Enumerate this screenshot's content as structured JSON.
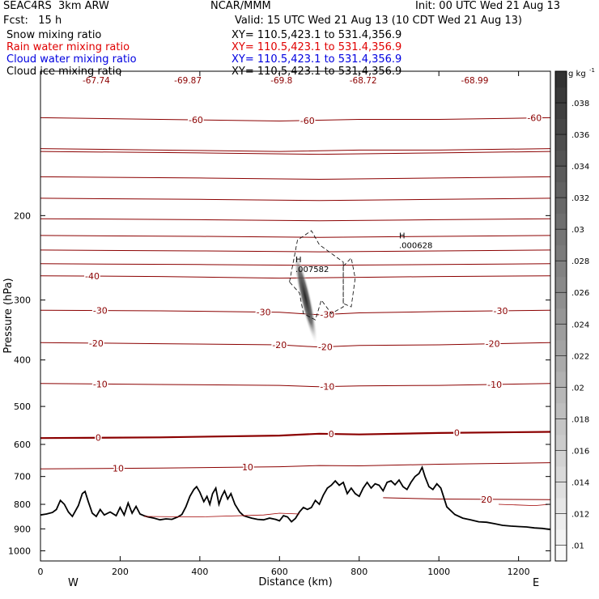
{
  "header": {
    "model": "SEAC4RS  3km ARW",
    "center": "NCAR/MMM",
    "init": "Init: 00 UTC Wed 21 Aug 13",
    "fcst": "Fcst:   15 h",
    "valid": "Valid: 15 UTC Wed 21 Aug 13 (10 CDT Wed 21 Aug 13)"
  },
  "fields": [
    {
      "name": "Snow mixing ratio",
      "xy": "XY= 110.5,423.1 to 531.4,356.9",
      "color": "#000000"
    },
    {
      "name": "Rain water mixing ratio",
      "xy": "XY= 110.5,423.1 to 531.4,356.9",
      "color": "#e00000"
    },
    {
      "name": "Cloud water mixing ratio",
      "xy": "XY= 110.5,423.1 to 531.4,356.9",
      "color": "#0000e0"
    },
    {
      "name": "Cloud ice mixing ratio",
      "xy": "XY= 110.5,423.1 to 531.4,356.9",
      "color": "#000000"
    }
  ],
  "chart_data": {
    "type": "contour",
    "xlabel": "Distance (km)",
    "ylabel": "Pressure (hPa)",
    "xlim": [
      0,
      1280
    ],
    "ylim": [
      1050,
      100
    ],
    "x_ticks": [
      "0",
      "200",
      "400",
      "600",
      "800",
      "1000",
      "1200"
    ],
    "y_ticks": [
      "200",
      "300",
      "400",
      "500",
      "600",
      "700",
      "800",
      "900",
      "1000"
    ],
    "x_tick_values": [
      0,
      200,
      400,
      600,
      800,
      1000,
      1200
    ],
    "y_tick_values": [
      200,
      300,
      400,
      500,
      600,
      700,
      800,
      900,
      1000
    ],
    "west_label": "W",
    "east_label": "E",
    "colorbar": {
      "unit": "g kg",
      "unit_sup": "-1",
      "ticks": [
        ".01",
        ".012",
        ".014",
        ".016",
        ".018",
        ".02",
        ".022",
        ".024",
        ".026",
        ".028",
        ".03",
        ".032",
        ".034",
        ".036",
        ".038"
      ],
      "tick_values": [
        0.01,
        0.012,
        0.014,
        0.016,
        0.018,
        0.02,
        0.022,
        0.024,
        0.026,
        0.028,
        0.03,
        0.032,
        0.034,
        0.036,
        0.038
      ],
      "range": [
        0.009,
        0.04
      ]
    },
    "temperature_contours_C": [
      {
        "level": -60,
        "points": [
          [
            0,
            125
          ],
          [
            300,
            126
          ],
          [
            600,
            127
          ],
          [
            800,
            126
          ],
          [
            1000,
            126
          ],
          [
            1280,
            125
          ]
        ],
        "labels": [
          [
            390,
            -60
          ],
          [
            670,
            -60
          ],
          [
            1240,
            -60
          ]
        ]
      },
      {
        "level": -50,
        "points": [
          [
            0,
            145
          ],
          [
            300,
            146
          ],
          [
            600,
            147
          ],
          [
            800,
            146
          ],
          [
            1000,
            146
          ],
          [
            1280,
            145
          ]
        ],
        "labels": []
      },
      {
        "level": -40,
        "points": [
          [
            0,
            267
          ],
          [
            300,
            268
          ],
          [
            600,
            270
          ],
          [
            800,
            269
          ],
          [
            1000,
            268
          ],
          [
            1280,
            267
          ]
        ],
        "labels": [
          [
            130,
            -40
          ]
        ]
      },
      {
        "level": -30,
        "points": [
          [
            0,
            315
          ],
          [
            300,
            316
          ],
          [
            600,
            318
          ],
          [
            700,
            322
          ],
          [
            800,
            319
          ],
          [
            1000,
            317
          ],
          [
            1280,
            315
          ]
        ],
        "labels": [
          [
            150,
            -30
          ],
          [
            560,
            -30
          ],
          [
            720,
            -30
          ],
          [
            1155,
            -30
          ]
        ]
      },
      {
        "level": -20,
        "points": [
          [
            0,
            368
          ],
          [
            300,
            370
          ],
          [
            600,
            372
          ],
          [
            700,
            376
          ],
          [
            800,
            373
          ],
          [
            1000,
            372
          ],
          [
            1280,
            368
          ]
        ],
        "labels": [
          [
            140,
            -20
          ],
          [
            600,
            -20
          ],
          [
            715,
            -20
          ],
          [
            1135,
            -20
          ]
        ]
      },
      {
        "level": -10,
        "points": [
          [
            0,
            448
          ],
          [
            300,
            450
          ],
          [
            600,
            452
          ],
          [
            700,
            455
          ],
          [
            800,
            453
          ],
          [
            1000,
            452
          ],
          [
            1280,
            448
          ]
        ],
        "labels": [
          [
            150,
            -10
          ],
          [
            720,
            -10
          ],
          [
            1140,
            -10
          ]
        ]
      },
      {
        "level": 0,
        "points": [
          [
            0,
            582
          ],
          [
            300,
            580
          ],
          [
            600,
            575
          ],
          [
            700,
            570
          ],
          [
            800,
            572
          ],
          [
            1000,
            568
          ],
          [
            1280,
            565
          ]
        ],
        "labels": [
          [
            145,
            0
          ],
          [
            730,
            0
          ],
          [
            1045,
            0
          ]
        ]
      },
      {
        "level": 10,
        "points": [
          [
            0,
            675
          ],
          [
            300,
            672
          ],
          [
            600,
            668
          ],
          [
            700,
            664
          ],
          [
            800,
            665
          ],
          [
            1000,
            660
          ],
          [
            1280,
            655
          ]
        ],
        "labels": [
          [
            195,
            10
          ],
          [
            520,
            10
          ]
        ]
      },
      {
        "level": 20,
        "points": [
          [
            860,
            775
          ],
          [
            1000,
            780
          ],
          [
            1280,
            782
          ]
        ],
        "labels": [
          [
            1120,
            20
          ]
        ]
      }
    ],
    "isotherm_spacing_upper": [
      147,
      166,
      184,
      203,
      220,
      236,
      252
    ],
    "maxima": [
      {
        "label": "H",
        "value": ".007582",
        "x": 640,
        "p": 258
      },
      {
        "label": "H",
        "value": ".000628",
        "x": 900,
        "p": 230
      }
    ],
    "top_min_labels": [
      "-67.74",
      "-69.87",
      "-69.8",
      "-68.72",
      "-68.99"
    ],
    "top_min_label_x": [
      140,
      370,
      605,
      810,
      1090
    ],
    "terrain": {
      "x": [
        0,
        15,
        30,
        40,
        50,
        60,
        70,
        80,
        95,
        105,
        112,
        120,
        130,
        140,
        150,
        160,
        175,
        190,
        200,
        210,
        220,
        230,
        240,
        250,
        260,
        270,
        285,
        300,
        315,
        330,
        345,
        355,
        365,
        375,
        385,
        392,
        400,
        410,
        418,
        425,
        432,
        440,
        448,
        455,
        462,
        470,
        478,
        488,
        500,
        510,
        520,
        530,
        545,
        560,
        575,
        590,
        600,
        610,
        620,
        630,
        640,
        650,
        660,
        670,
        680,
        690,
        700,
        710,
        720,
        730,
        740,
        750,
        760,
        770,
        780,
        790,
        800,
        810,
        820,
        830,
        840,
        850,
        860,
        870,
        880,
        890,
        900,
        910,
        920,
        930,
        940,
        950,
        958,
        965,
        975,
        985,
        995,
        1005,
        1020,
        1040,
        1060,
        1080,
        1100,
        1120,
        1140,
        1160,
        1180,
        1200,
        1220,
        1240,
        1260,
        1280
      ],
      "p": [
        842,
        838,
        832,
        820,
        785,
        800,
        830,
        848,
        805,
        760,
        752,
        790,
        835,
        848,
        820,
        842,
        830,
        845,
        812,
        842,
        795,
        835,
        808,
        838,
        845,
        850,
        855,
        862,
        858,
        860,
        850,
        840,
        810,
        770,
        745,
        735,
        755,
        790,
        770,
        800,
        760,
        740,
        800,
        770,
        750,
        780,
        760,
        800,
        830,
        845,
        850,
        855,
        860,
        862,
        855,
        860,
        866,
        845,
        850,
        870,
        856,
        830,
        812,
        820,
        812,
        785,
        800,
        765,
        740,
        730,
        715,
        730,
        720,
        760,
        740,
        760,
        770,
        740,
        720,
        740,
        725,
        730,
        750,
        720,
        715,
        728,
        712,
        735,
        745,
        720,
        700,
        690,
        670,
        700,
        735,
        745,
        725,
        740,
        810,
        840,
        855,
        862,
        870,
        872,
        878,
        885,
        888,
        890,
        892,
        896,
        898,
        903
      ]
    },
    "snow_maximum_streak": {
      "x": [
        640,
        690
      ],
      "p": [
        240,
        365
      ],
      "peak_value": 0.03
    }
  }
}
